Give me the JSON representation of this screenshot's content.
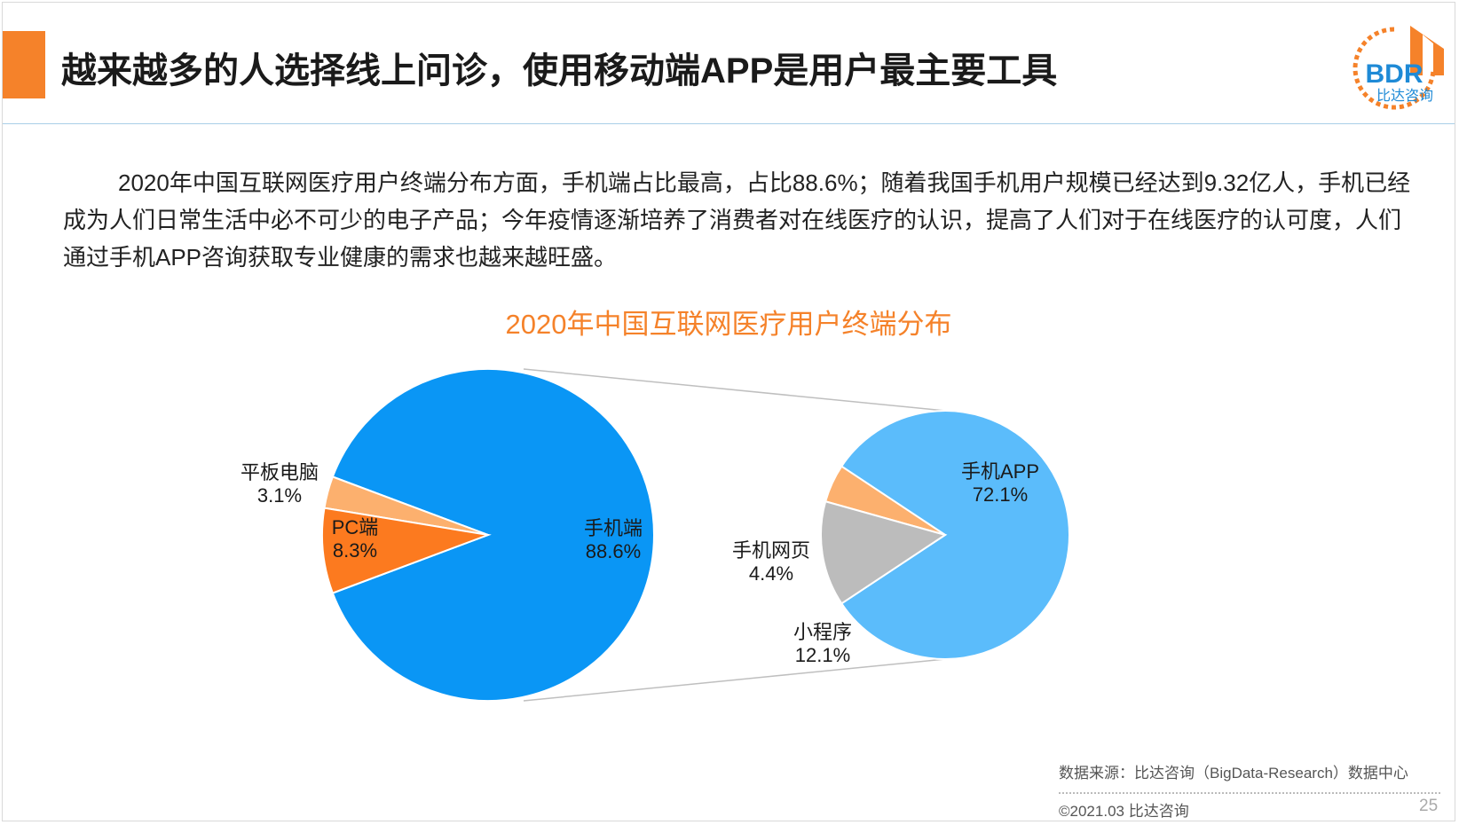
{
  "header": {
    "title": "越来越多的人选择线上问诊，使用移动端APP是用户最主要工具",
    "logo_text": "BDR",
    "logo_subtext": "比达咨询"
  },
  "body": {
    "paragraph": "2020年中国互联网医疗用户终端分布方面，手机端占比最高，占比88.6%；随着我国手机用户规模已经达到9.32亿人，手机已经成为人们日常生活中必不可少的电子产品；今年疫情逐渐培养了消费者对在线医疗的认识，提高了人们对于在线医疗的认可度，人们通过手机APP咨询获取专业健康的需求也越来越旺盛。"
  },
  "footer": {
    "source": "数据来源：比达咨询（BigData-Research）数据中心",
    "copyright": "©2021.03 比达咨询",
    "page_number": "25"
  },
  "chart_data": {
    "type": "pie",
    "title": "2020年中国互联网医疗用户终端分布",
    "pies": [
      {
        "id": "main",
        "slices": [
          {
            "label": "手机端",
            "value": 88.6,
            "value_label": "88.6%",
            "color": "#0a96f5"
          },
          {
            "label": "平板电脑",
            "value": 3.1,
            "value_label": "3.1%",
            "color": "#fcb06e"
          },
          {
            "label": "PC端",
            "value": 8.3,
            "value_label": "8.3%",
            "color": "#fc7a1f"
          }
        ]
      },
      {
        "id": "breakdown",
        "exploded_from": "手机端",
        "slices": [
          {
            "label": "手机APP",
            "value": 72.1,
            "value_label": "72.1%",
            "color": "#5bbcfb"
          },
          {
            "label": "手机网页",
            "value": 4.4,
            "value_label": "4.4%",
            "color": "#fcb06e"
          },
          {
            "label": "小程序",
            "value": 12.1,
            "value_label": "12.1%",
            "color": "#bcbcbc"
          }
        ]
      }
    ],
    "connector_color": "#bfbfbf",
    "label_color": "#1a1a1a"
  }
}
